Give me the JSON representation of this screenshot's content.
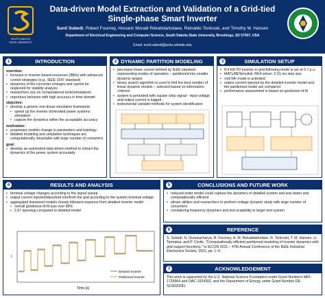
{
  "header": {
    "title_line1": "Data-driven Model Extraction and Validation of a Grid-tied",
    "title_line2": "Single-phase Smart Inverter",
    "presenter": "Sunil Subedi",
    "coauthors": ", Robert Fourney, Hossein Moradi Rekabdarkolaee, Reinaldo Tonkoski, and Timothy M. Hansen",
    "affiliation": "Department of Electrical Engineering and Computer Science, South Dakota State University, Brookings, SD 57007, USA",
    "email": "Email: sunil.subedi@jacks.sdstate.edu",
    "logo_left_text": "SOUTH DAKOTA STATE UNIVERSITY",
    "logo_right_text": "DEPARTMENT OF ENERGY"
  },
  "panels": {
    "intro": {
      "num": "1",
      "title": "INTRODUCTION",
      "overview_label": "overview:",
      "overview": [
        "increase in inverter-based resources (IBRs) with advanced control strategies (e.g., IEEE 1547 standard)",
        "dynamics of the converter changes and cannot be neglected for stability analysis",
        "researchers rely on computational tools/simulations",
        "reproduce behavior with high accuracy in time domain"
      ],
      "objective_label": "objective:",
      "objective": [
        "develop a generic non-linear simulation framework"
      ],
      "objective_sub": [
        "speed up the inverter dominated power systems simulation",
        "capture the dynamics within the acceptable accuracy"
      ],
      "motivation_label": "motivation:",
      "motivation": [
        "proprietary models change in parameters and topology",
        "detailed modeling and simulation techniques are computationally intractable with large number of converters"
      ],
      "goal_label": "goal:",
      "goal": [
        "develop an automated data-driven method to extract the dynamics of the power system accurately"
      ]
    },
    "dpm": {
      "num": "2",
      "title": "DYNAMIC PARTITION MODELING",
      "items": [
        "piecewise linear curved defined by IEEE standard representing modes of operation – partitioned into smaller dynamic ranges",
        "binary search algorithm is used to find the best number of linear dynamic models – selected based on information criterion",
        "system is perturbed with square chirp signal - input voltage and output current is logged",
        "instrumental variable methods for system identification"
      ]
    },
    "sim": {
      "num": "3",
      "title": "SIMULATION SETUP",
      "items": [
        "8.4 kW PV inverter in grid-following mode is set at 0.7 p.u.",
        "MATLAB/Simulink; RK4 solver; 0.01 ms step size",
        "volt-VAr mode is activated",
        "output current injected by the detailed inverter model and the partitioned model are compared",
        "performance assessment is based on goodness-of-fit"
      ]
    },
    "results": {
      "num": "4",
      "title": "RESULTS AND ANALYSIS",
      "items": [
        "terminal voltage changes according to the signal sweep",
        "output current injected/absorbed into/from the grid according to the system terminal voltage",
        "aggregated linearized models closely followed response from detailed inverter model",
        "overall goodness-of-fit was over 98%",
        "2.5× speedup compared to detailed model"
      ],
      "xlabel": "Time [s]",
      "ylabel": "I",
      "legend1": "Detailed Inverter",
      "legend2": "Partitioned Inverter"
    },
    "conclusions": {
      "num": "5",
      "title": "CONCLUSIONS AND FUTURE WORK",
      "items": [
        "reduced-order model could capture the dynamics of detailed system and was faster and computationally efficient",
        "allows utilities and researchers to perform voltage dynamic study with large number of converters",
        "considering frequency dynamics and test scalability in larger test system"
      ]
    },
    "reference": {
      "num": "6",
      "title": "REFERENCE",
      "text": "S. Subedi, N. Guruwacharya, R. Fourney, H. M. Rekabdarkolaee, R. Tonkoski, T. M. Hansen, U. Tamrakar, and P. Cicilio, \"Computationally efficient partitioned modeling of inverter dynamics with grid support functions,\" in IECON 2021 – 47th Annual Conference of the IEEE Industrial Electronics Society, 2021, pp. 1–6."
    },
    "ack": {
      "num": "7",
      "title": "ACKNOWLEDGEMENT",
      "text": "This work is supported by the U.S. National Science Foundation under Grant Numbers MRI-1726964 and OAC-1924302, and the Department of Energy under Grant Number DE-SC0020281."
    }
  },
  "colors": {
    "navy": "#0a2f6b",
    "gold": "#f2b705",
    "sim_orange": "#e58a1f",
    "detailed": "#7a7a7a",
    "partitioned": "#e0a030"
  }
}
